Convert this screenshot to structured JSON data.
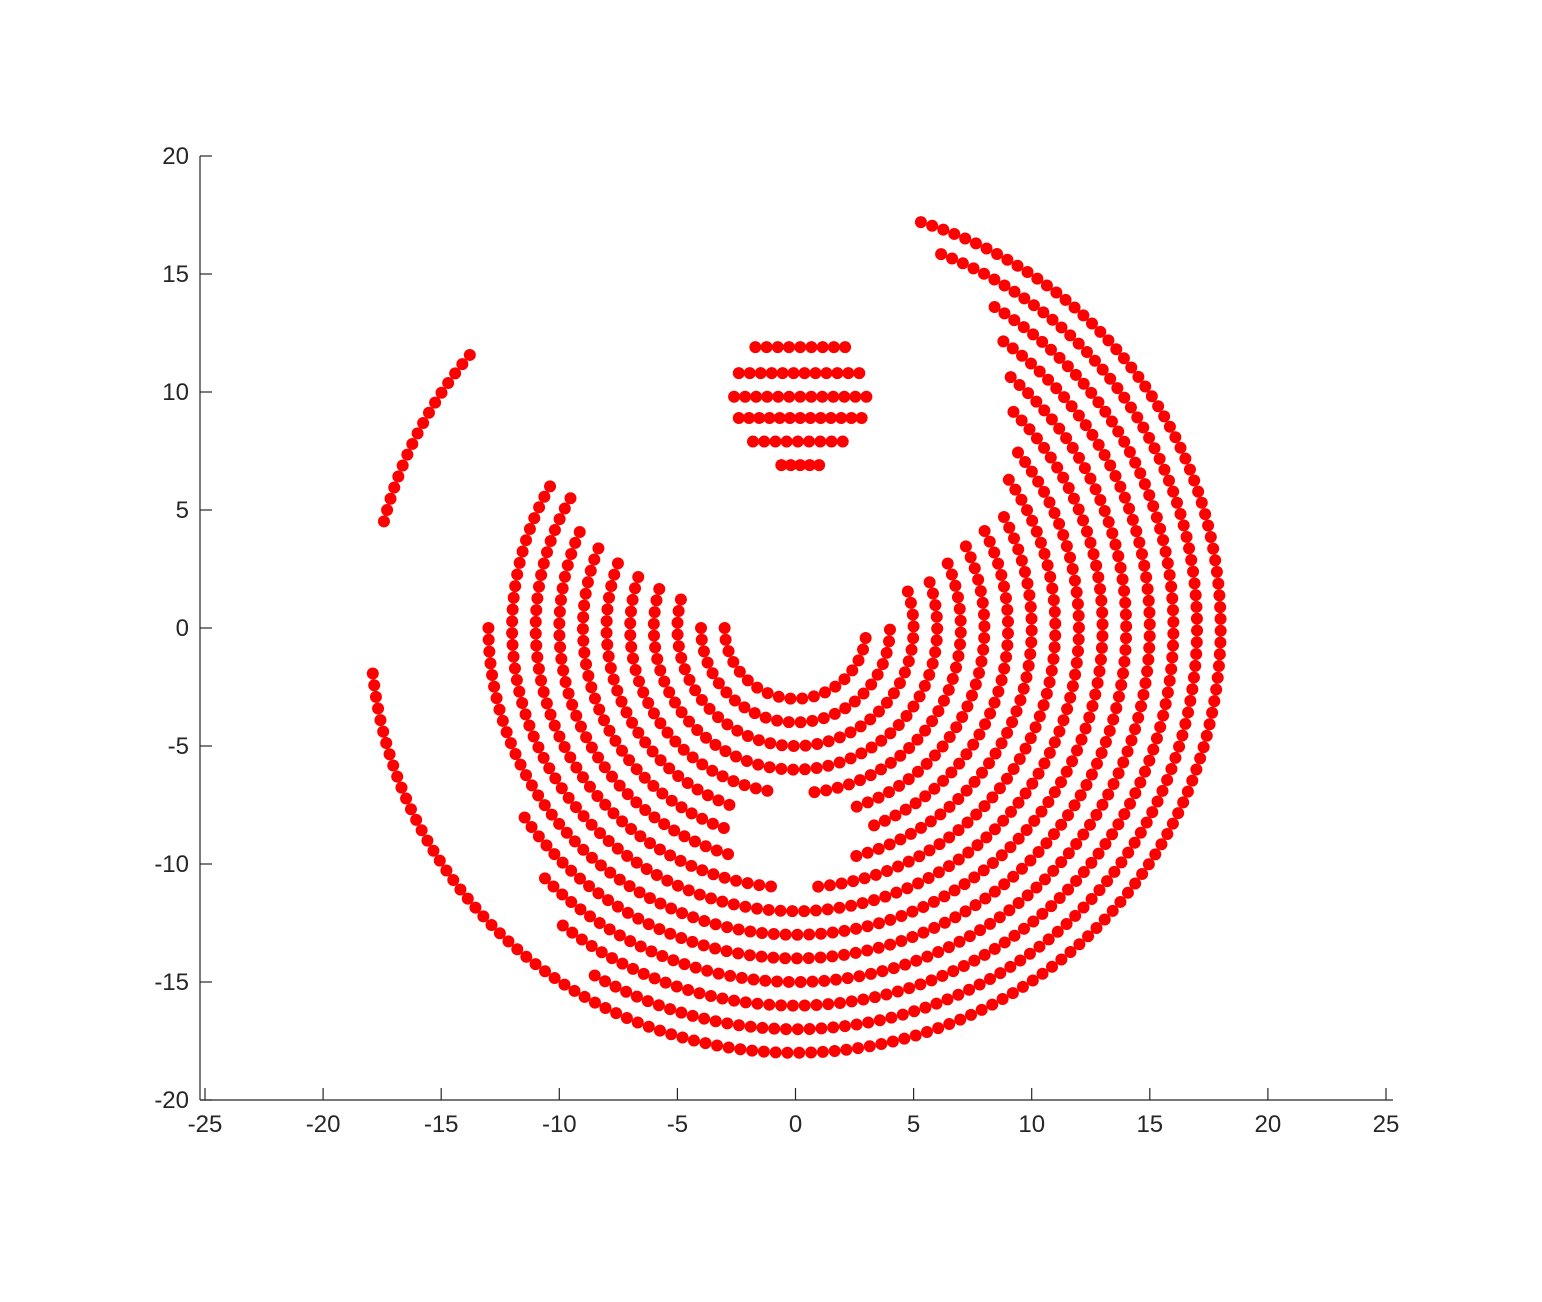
{
  "chart_data": {
    "type": "scatter",
    "title": "",
    "xlabel": "",
    "ylabel": "",
    "xlim": [
      -25,
      25
    ],
    "ylim": [
      -20,
      20
    ],
    "xticks": [
      "-25",
      "-20",
      "-15",
      "-10",
      "-5",
      "0",
      "5",
      "10",
      "15",
      "20",
      "25"
    ],
    "yticks": [
      "20",
      "15",
      "10",
      "5",
      "0",
      "-5",
      "-10",
      "-15",
      "-20"
    ],
    "grid": false,
    "box": false,
    "marker_color": "#ff0000",
    "marker": "filled-circle",
    "series": [
      {
        "description_shape": "dotted concentric semicircular arcs around origin",
        "arcs": [
          {
            "r": 3,
            "theta_start": 180,
            "theta_end": 360,
            "gap": null
          },
          {
            "r": 4,
            "theta_start": 180,
            "theta_end": 360,
            "gap": null
          },
          {
            "r": 5,
            "theta_start": 166,
            "theta_end": 380,
            "gap": null
          },
          {
            "r": 6,
            "theta_start": 164,
            "theta_end": 382,
            "gap": null
          },
          {
            "r": 7,
            "theta_start": 162,
            "theta_end": 384,
            "gap": [
              264,
              276
            ]
          },
          {
            "r": 8,
            "theta_start": 160,
            "theta_end": 386,
            "gap": [
              252,
              288
            ]
          },
          {
            "r": 9,
            "theta_start": 158,
            "theta_end": 388,
            "gap": [
              251,
              289
            ]
          },
          {
            "r": 10,
            "theta_start": 156,
            "theta_end": 390,
            "gap": [
              256,
              284
            ]
          },
          {
            "r": 11,
            "theta_start": 150,
            "theta_end": 395,
            "gap": [
              265,
              275
            ]
          },
          {
            "r": 12,
            "theta_start": 150,
            "theta_end": 400,
            "gap": null
          },
          {
            "r": 13,
            "theta_start": 180,
            "theta_end": 405,
            "gap": null
          },
          {
            "r": 14,
            "theta_start": 215,
            "theta_end": 410,
            "gap": null
          },
          {
            "r": 15,
            "theta_start": 225,
            "theta_end": 415,
            "gap": null
          },
          {
            "r": 16,
            "theta_start": 232,
            "theta_end": 420,
            "gap": null
          },
          {
            "r": 17,
            "theta_start": 240,
            "theta_end": 430,
            "gap": null
          },
          {
            "r": 18,
            "theta_start": 140,
            "theta_end": 434,
            "gap": [
              166,
              186
            ]
          }
        ]
      },
      {
        "description_shape": "small disc of horizontal dotted rows",
        "disc": {
          "rows": [
            {
              "y": 11.9,
              "x_from": -1.7,
              "x_to": 2.1
            },
            {
              "y": 10.8,
              "x_from": -2.4,
              "x_to": 2.7
            },
            {
              "y": 9.8,
              "x_from": -2.6,
              "x_to": 3.0
            },
            {
              "y": 8.9,
              "x_from": -2.4,
              "x_to": 2.8
            },
            {
              "y": 7.9,
              "x_from": -1.8,
              "x_to": 2.0
            },
            {
              "y": 6.9,
              "x_from": -0.6,
              "x_to": 1.0
            }
          ]
        }
      }
    ]
  }
}
